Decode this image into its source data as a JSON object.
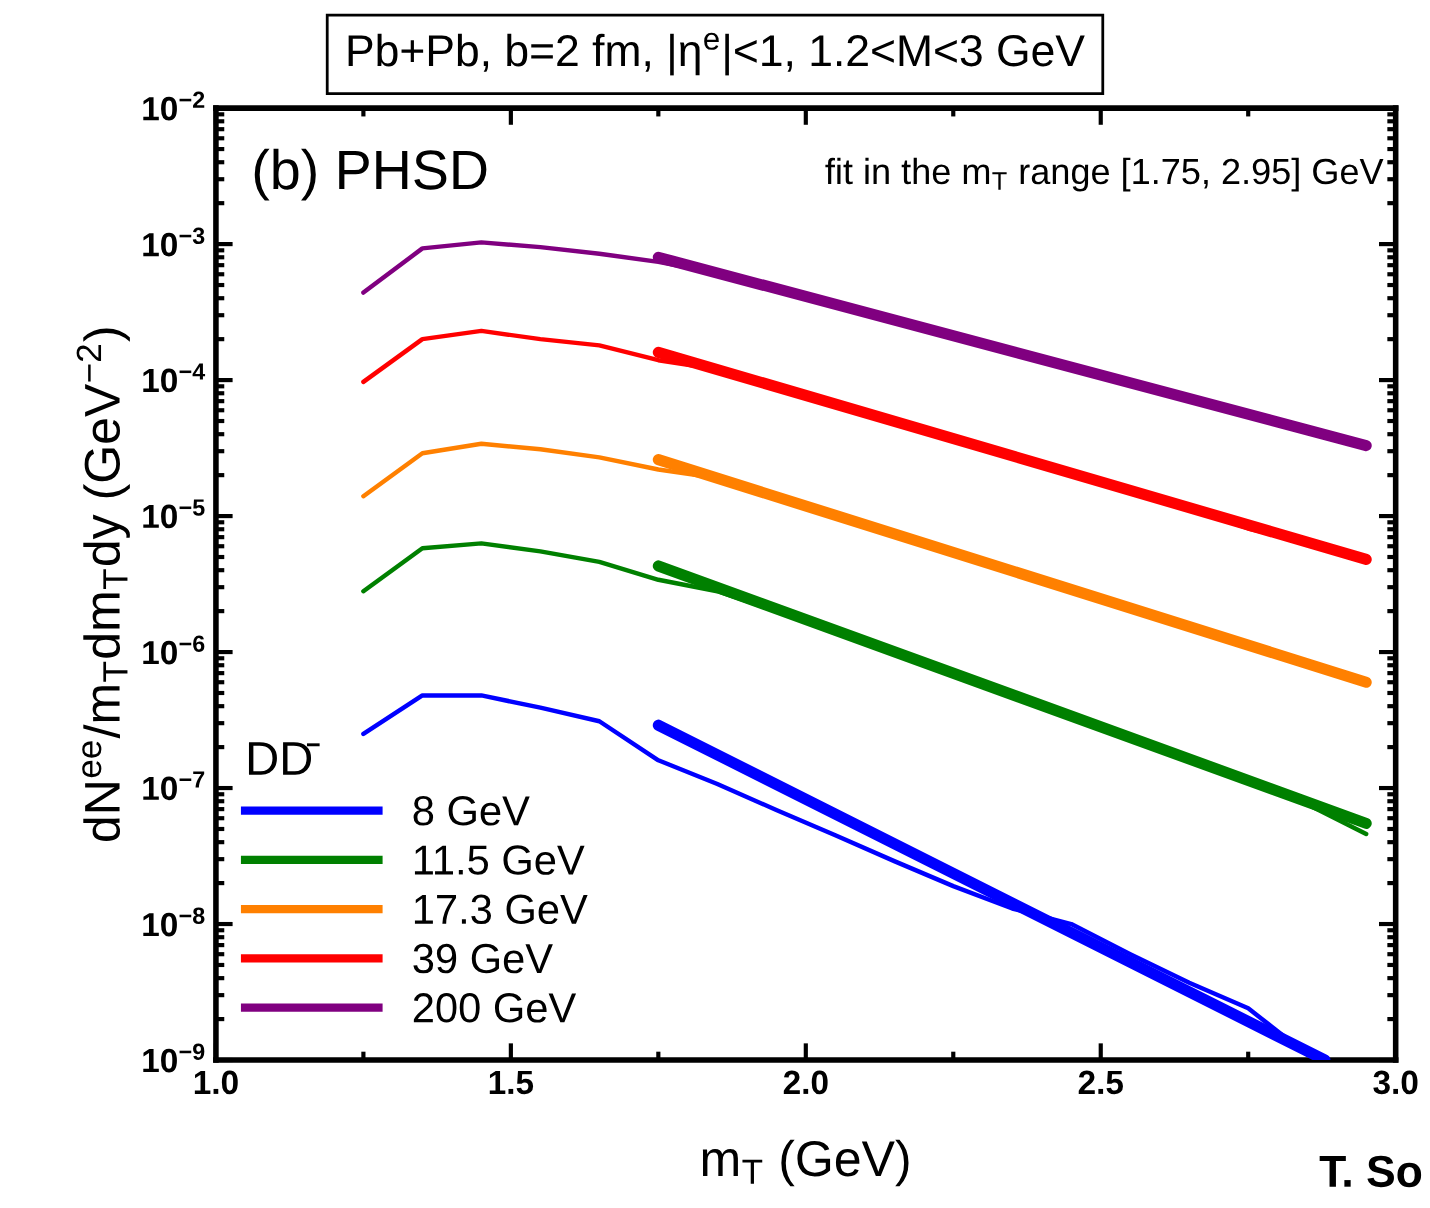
{
  "chart_data": {
    "type": "line",
    "title": "Pb+Pb, b=2 fm, |η$^{e}$|<1, 1.2<M<3 GeV",
    "xlabel": "m$_{T}$ (GeV)",
    "ylabel": "dN$^{ee}$/m$_{T}$dm$_{T}$dy (GeV$^{−2}$)",
    "legend_title": "DD̄",
    "legend": "bottom left",
    "log": "y",
    "grid": false,
    "marker": "none",
    "line_style": "solid",
    "xlim": [
      1.0,
      3.0
    ],
    "xticks": [
      {
        "value": 1.0,
        "label": "1.0"
      },
      {
        "value": 1.5,
        "label": "1.5"
      },
      {
        "value": 2.0,
        "label": "2.0"
      },
      {
        "value": 2.5,
        "label": "2.5"
      },
      {
        "value": 3.0,
        "label": "3.0"
      }
    ],
    "ylim": [
      1e-09,
      0.01
    ],
    "yticks": [
      {
        "value": 1e-09,
        "label": "10$^{−9}$"
      },
      {
        "value": 1e-08,
        "label": "10$^{−8}$"
      },
      {
        "value": 1e-07,
        "label": "10$^{−7}$"
      },
      {
        "value": 1e-06,
        "label": "10$^{−6}$"
      },
      {
        "value": 1e-05,
        "label": "10$^{−5}$"
      },
      {
        "value": 0.0001,
        "label": "10$^{−4}$"
      },
      {
        "value": 0.001,
        "label": "10$^{−3}$"
      },
      {
        "value": 0.01,
        "label": "10$^{−2}$"
      }
    ],
    "annotations": [
      "(b) PHSD",
      "fit in the m$_{T}$ range [1.75, 2.95] GeV",
      "T. So"
    ],
    "series": [
      {
        "name": "8 GeV",
        "color": "#0000ff",
        "x": [
          1.25,
          1.35,
          1.45,
          1.55,
          1.65,
          1.75,
          1.85,
          1.95,
          2.05,
          2.15,
          2.25,
          2.35,
          2.45,
          2.55,
          2.65,
          2.75,
          2.85
        ],
        "values": [
          2.5e-07,
          4.8e-07,
          4.8e-07,
          3.9e-07,
          3.1e-07,
          1.6e-07,
          1.07e-07,
          6.9e-08,
          4.5e-08,
          2.9e-08,
          1.9e-08,
          1.3e-08,
          1e-08,
          6e-09,
          3.7e-09,
          2.4e-09,
          1.1e-09
        ]
      },
      {
        "name": "11.5 GeV",
        "color": "#008000",
        "x": [
          1.25,
          1.35,
          1.45,
          1.55,
          1.65,
          1.75,
          1.85,
          1.95,
          2.05,
          2.15,
          2.25,
          2.35,
          2.45,
          2.55,
          2.65,
          2.75,
          2.85,
          2.95
        ],
        "values": [
          2.8e-06,
          5.8e-06,
          6.3e-06,
          5.5e-06,
          4.6e-06,
          3.4e-06,
          2.8e-06,
          2e-06,
          1.45e-06,
          1e-06,
          7.1e-07,
          4.9e-07,
          3.4e-07,
          2.4e-07,
          1.7e-07,
          1.15e-07,
          7.6e-08,
          4.6e-08
        ]
      },
      {
        "name": "17.3 GeV",
        "color": "#ff8000",
        "x": [
          1.25,
          1.35,
          1.45,
          1.55,
          1.65,
          1.75,
          1.85,
          1.95,
          2.05,
          2.15,
          2.25,
          2.35,
          2.45,
          2.55,
          2.65,
          2.75,
          2.85,
          2.95
        ],
        "values": [
          1.4e-05,
          2.9e-05,
          3.4e-05,
          3.1e-05,
          2.7e-05,
          2.2e-05,
          1.9e-05,
          1.4e-05,
          1e-05,
          7.4e-06,
          5.4e-06,
          4e-06,
          2.9e-06,
          2.1e-06,
          1.55e-06,
          1.1e-06,
          8.3e-07,
          6e-07
        ]
      },
      {
        "name": "39 GeV",
        "color": "#ff0000",
        "x": [
          1.25,
          1.35,
          1.45,
          1.55,
          1.65,
          1.75,
          1.85,
          1.95,
          2.05,
          2.15,
          2.25,
          2.35,
          2.45,
          2.55,
          2.65,
          2.75,
          2.85,
          2.95
        ],
        "values": [
          9.7e-05,
          0.0002,
          0.00023,
          0.0002,
          0.00018,
          0.00014,
          0.00012,
          8.9e-05,
          6.6e-05,
          4.9e-05,
          3.7e-05,
          2.8e-05,
          2e-05,
          1.55e-05,
          1.15e-05,
          8.1e-06,
          6.4e-06,
          4.8e-06
        ]
      },
      {
        "name": "200 GeV",
        "color": "#800080",
        "x": [
          1.25,
          1.35,
          1.45,
          1.55,
          1.65,
          1.75,
          1.85,
          1.95,
          2.05,
          2.15,
          2.25,
          2.35,
          2.45,
          2.55,
          2.65,
          2.75,
          2.85,
          2.95
        ],
        "values": [
          0.00044,
          0.00093,
          0.00103,
          0.00095,
          0.00085,
          0.00074,
          0.00061,
          0.00047,
          0.00036,
          0.000275,
          0.00021,
          0.00016,
          0.000124,
          9.5e-05,
          7.3e-05,
          5.6e-05,
          4.3e-05,
          3.3e-05
        ]
      },
      {
        "color": "#0000ff",
        "x": [
          1.75,
          2.88
        ],
        "values": [
          2.9e-07,
          1e-09
        ]
      },
      {
        "color": "#008000",
        "x": [
          1.75,
          2.95
        ],
        "values": [
          4.3e-06,
          5.5e-08
        ]
      },
      {
        "color": "#ff8000",
        "x": [
          1.75,
          2.95
        ],
        "values": [
          2.6e-05,
          6e-07
        ]
      },
      {
        "color": "#ff0000",
        "x": [
          1.75,
          2.95
        ],
        "values": [
          0.00016,
          4.8e-06
        ]
      },
      {
        "color": "#800080",
        "x": [
          1.75,
          2.95
        ],
        "values": [
          0.0008,
          3.3e-05
        ]
      }
    ]
  }
}
